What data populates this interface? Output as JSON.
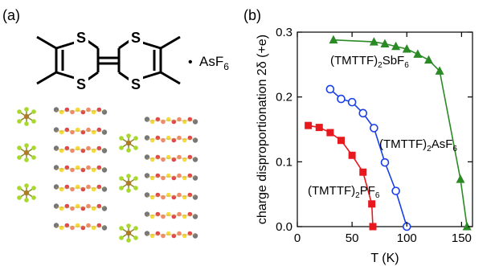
{
  "panels": {
    "a": "(a)",
    "b": "(b)"
  },
  "molecule": {
    "atom": "S",
    "counterion": "AsF",
    "counterion_sub": "6",
    "bullet": "•"
  },
  "colors": {
    "pf6": "#e8191e",
    "asf6": "#1a3fe6",
    "sbf6": "#2a8a24",
    "sulfur": "#c8b400"
  },
  "chart_data": {
    "type": "scatter",
    "xlabel": "T (K)",
    "ylabel": "charge disproportionation 2δ (+e)",
    "xlim": [
      0,
      160
    ],
    "ylim": [
      0,
      0.3
    ],
    "xticks": [
      0,
      50,
      100,
      150
    ],
    "yticks": [
      0.0,
      0.1,
      0.2,
      0.3
    ],
    "xtick_labels": [
      "0",
      "50",
      "100",
      "150"
    ],
    "ytick_labels": [
      "0.0",
      "0.1",
      "0.2",
      "0.3"
    ],
    "series": [
      {
        "name": "(TMTTF)2PF6",
        "label_main": "(TMTTF)",
        "label_sub1": "2",
        "label_mid": "PF",
        "label_sub2": "6",
        "color": "#e8191e",
        "marker": "square-filled",
        "x": [
          10,
          20,
          30,
          40,
          50,
          60,
          68,
          69
        ],
        "y": [
          0.156,
          0.153,
          0.145,
          0.133,
          0.11,
          0.084,
          0.035,
          0.0
        ]
      },
      {
        "name": "(TMTTF)2AsF6",
        "label_main": "(TMTTF)",
        "label_sub1": "2",
        "label_mid": "AsF",
        "label_sub2": "6",
        "color": "#1a3fe6",
        "marker": "circle-open",
        "x": [
          30,
          40,
          50,
          60,
          70,
          80,
          90,
          100
        ],
        "y": [
          0.212,
          0.197,
          0.192,
          0.175,
          0.152,
          0.099,
          0.055,
          0.0
        ]
      },
      {
        "name": "(TMTTF)2SbF6",
        "label_main": "(TMTTF)",
        "label_sub1": "2",
        "label_mid": "SbF",
        "label_sub2": "6",
        "color": "#2a8a24",
        "marker": "triangle-filled",
        "x": [
          33,
          70,
          80,
          90,
          100,
          110,
          120,
          130,
          149,
          155
        ],
        "y": [
          0.288,
          0.285,
          0.282,
          0.278,
          0.274,
          0.266,
          0.257,
          0.24,
          0.073,
          0.0
        ]
      }
    ]
  }
}
